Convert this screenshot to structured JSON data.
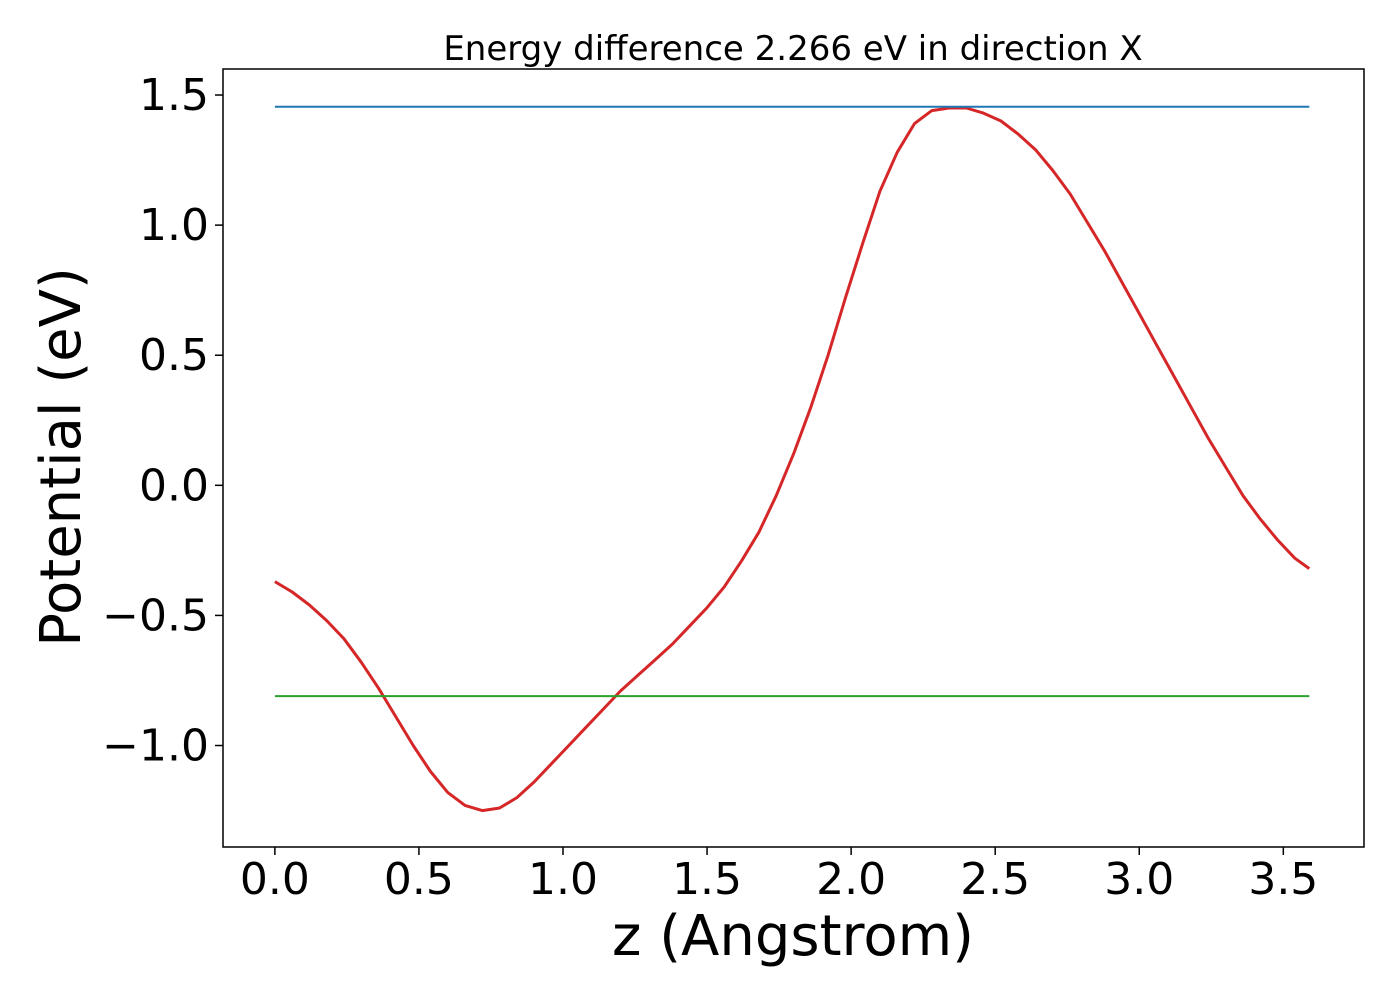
{
  "chart_data": {
    "type": "line",
    "title": "Energy difference 2.266 eV in direction X",
    "xlabel": "z (Angstrom)",
    "ylabel": "Potential (eV)",
    "xlim": [
      -0.18,
      3.78
    ],
    "ylim": [
      -1.39,
      1.6
    ],
    "xticks": [
      0.0,
      0.5,
      1.0,
      1.5,
      2.0,
      2.5,
      3.0,
      3.5
    ],
    "xtick_labels": [
      "0.0",
      "0.5",
      "1.0",
      "1.5",
      "2.0",
      "2.5",
      "3.0",
      "3.5"
    ],
    "yticks": [
      -1.0,
      -0.5,
      0.0,
      0.5,
      1.0,
      1.5
    ],
    "ytick_labels": [
      "−1.0",
      "−0.5",
      "0.0",
      "0.5",
      "1.0",
      "1.5"
    ],
    "grid": false,
    "series": [
      {
        "color": "#d62728",
        "x": [
          0.0,
          0.06,
          0.12,
          0.18,
          0.24,
          0.3,
          0.36,
          0.42,
          0.48,
          0.54,
          0.6,
          0.66,
          0.72,
          0.78,
          0.84,
          0.9,
          0.96,
          1.02,
          1.08,
          1.14,
          1.2,
          1.26,
          1.32,
          1.38,
          1.44,
          1.5,
          1.56,
          1.62,
          1.68,
          1.74,
          1.8,
          1.86,
          1.92,
          1.98,
          2.04,
          2.1,
          2.16,
          2.22,
          2.28,
          2.34,
          2.4,
          2.46,
          2.52,
          2.58,
          2.64,
          2.7,
          2.76,
          2.82,
          2.88,
          2.94,
          3.0,
          3.06,
          3.12,
          3.18,
          3.24,
          3.3,
          3.36,
          3.42,
          3.48,
          3.54,
          3.59
        ],
        "y": [
          -0.37,
          -0.41,
          -0.46,
          -0.52,
          -0.59,
          -0.68,
          -0.78,
          -0.89,
          -1.0,
          -1.1,
          -1.18,
          -1.23,
          -1.25,
          -1.24,
          -1.2,
          -1.14,
          -1.07,
          -1.0,
          -0.93,
          -0.86,
          -0.79,
          -0.73,
          -0.67,
          -0.61,
          -0.54,
          -0.47,
          -0.39,
          -0.29,
          -0.18,
          -0.04,
          0.12,
          0.3,
          0.5,
          0.72,
          0.93,
          1.13,
          1.28,
          1.39,
          1.44,
          1.45,
          1.45,
          1.43,
          1.4,
          1.35,
          1.29,
          1.21,
          1.12,
          1.01,
          0.9,
          0.78,
          0.66,
          0.54,
          0.42,
          0.3,
          0.18,
          0.07,
          -0.04,
          -0.13,
          -0.21,
          -0.28,
          -0.32
        ]
      },
      {
        "color": "#1f77b4",
        "x": [
          0.0,
          3.59
        ],
        "y": [
          1.455,
          1.455
        ]
      },
      {
        "color": "#2ca02c",
        "x": [
          0.0,
          3.59
        ],
        "y": [
          -0.81,
          -0.81
        ]
      }
    ]
  }
}
